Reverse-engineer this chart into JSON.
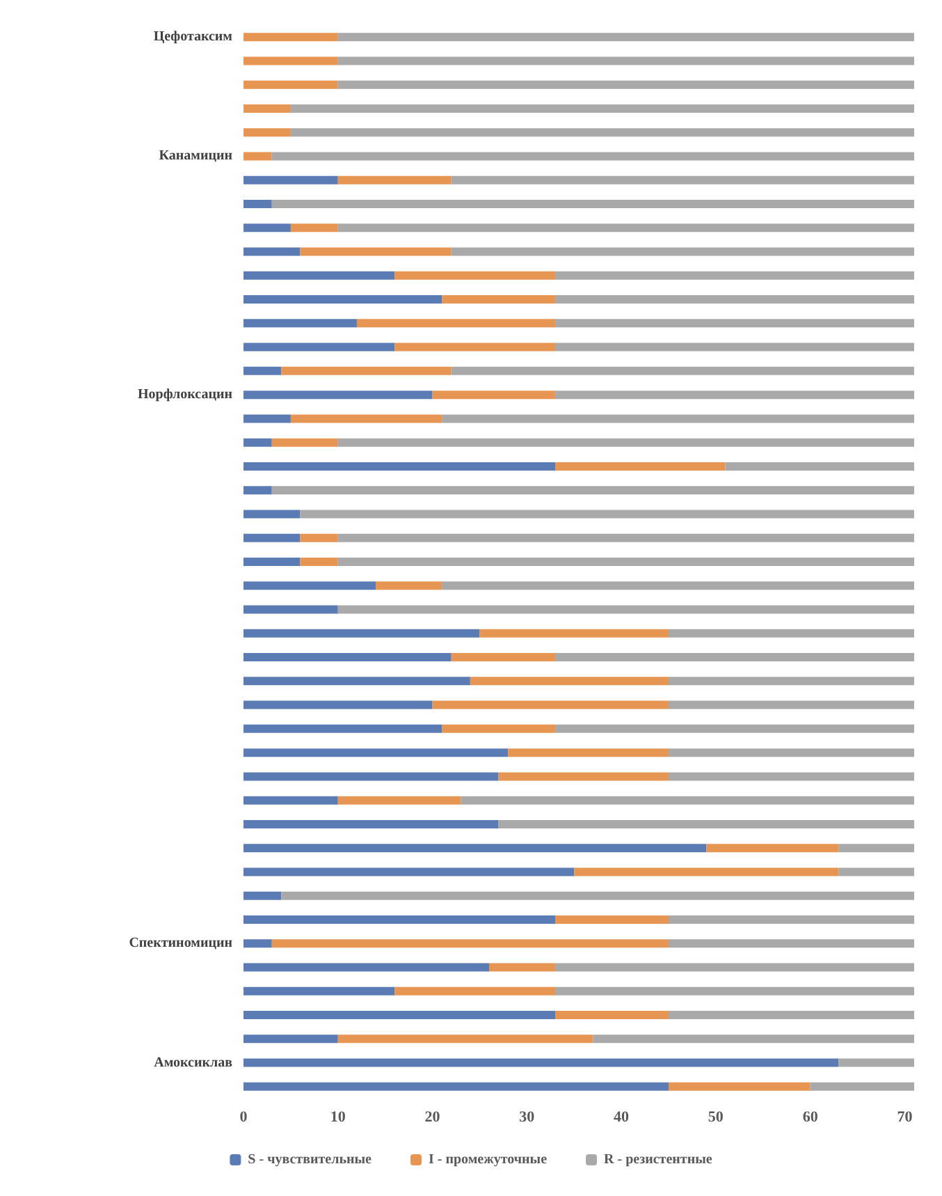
{
  "chart_data": {
    "type": "bar",
    "orientation": "horizontal",
    "stacked": true,
    "categories": [
      "Цефотаксим",
      null,
      null,
      null,
      null,
      "Канамицин",
      null,
      null,
      null,
      null,
      null,
      null,
      null,
      null,
      null,
      "Норфлоксацин",
      null,
      null,
      null,
      null,
      null,
      null,
      null,
      null,
      null,
      null,
      null,
      null,
      null,
      null,
      null,
      null,
      null,
      null,
      null,
      null,
      null,
      null,
      "Спектиномицин",
      null,
      null,
      null,
      null,
      "Амоксиклав",
      null
    ],
    "series": [
      {
        "name": "S - чувствительные",
        "color": "#5b7bb4",
        "values": [
          0,
          0,
          0,
          0,
          0,
          0,
          10,
          3,
          5,
          6,
          16,
          21,
          12,
          16,
          4,
          20,
          5,
          3,
          33,
          3,
          6,
          6,
          6,
          14,
          10,
          25,
          22,
          24,
          20,
          21,
          28,
          27,
          10,
          27,
          49,
          35,
          4,
          33,
          3,
          26,
          16,
          33,
          10,
          63,
          45
        ]
      },
      {
        "name": "I - промежуточные",
        "color": "#e69552",
        "values": [
          10,
          10,
          10,
          5,
          5,
          3,
          12,
          0,
          5,
          16,
          17,
          12,
          21,
          17,
          18,
          13,
          16,
          7,
          18,
          0,
          0,
          4,
          4,
          7,
          0,
          20,
          11,
          21,
          25,
          12,
          17,
          18,
          13,
          0,
          14,
          28,
          0,
          12,
          42,
          7,
          17,
          12,
          27,
          0,
          15
        ]
      },
      {
        "name": "R - резистентные",
        "color": "#a9a9a9",
        "values": [
          61,
          61,
          61,
          66,
          66,
          68,
          49,
          68,
          61,
          49,
          38,
          38,
          38,
          38,
          49,
          38,
          50,
          61,
          20,
          68,
          65,
          61,
          61,
          50,
          61,
          26,
          38,
          26,
          26,
          38,
          26,
          26,
          48,
          44,
          8,
          8,
          67,
          26,
          26,
          38,
          38,
          26,
          34,
          8,
          11
        ]
      }
    ],
    "xlim": [
      0,
      71
    ],
    "xticks": [
      0,
      10,
      20,
      30,
      40,
      50,
      60,
      70
    ],
    "grid": false,
    "legend": "bottom"
  }
}
